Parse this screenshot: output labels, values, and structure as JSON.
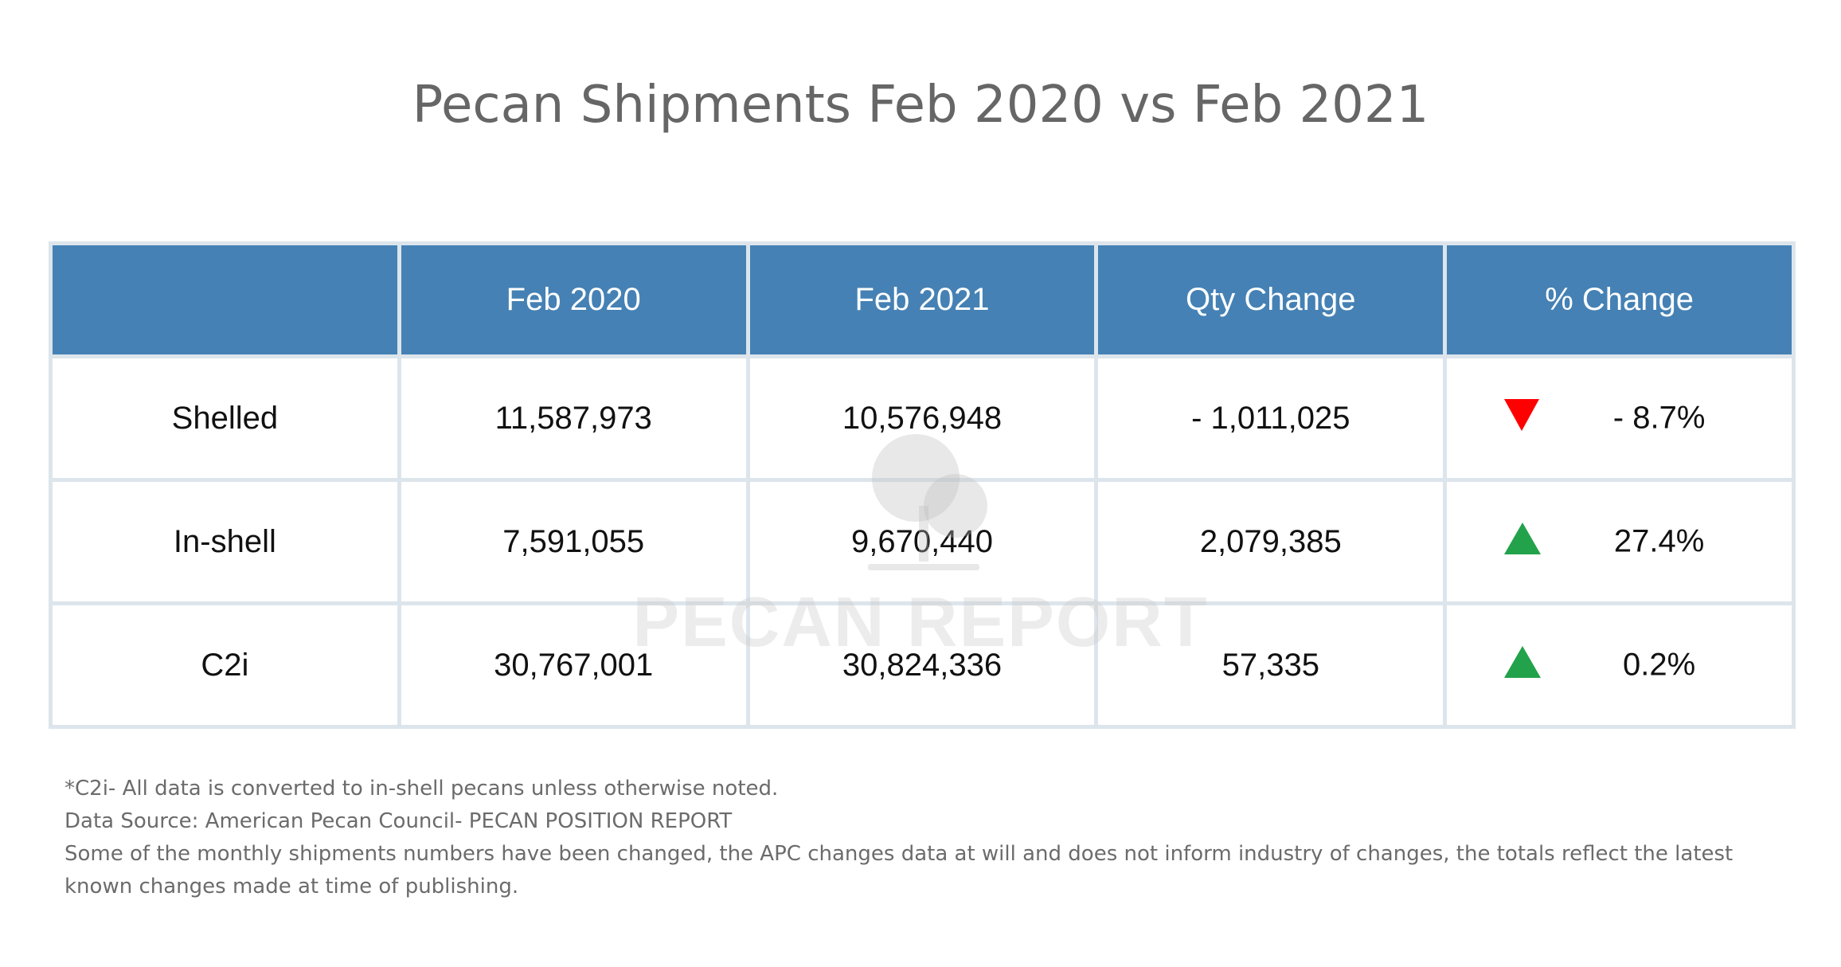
{
  "title": "Pecan Shipments Feb 2020 vs Feb 2021",
  "chart_data": {
    "type": "table",
    "title": "Pecan Shipments Feb 2020 vs Feb 2021",
    "columns": [
      "",
      "Feb 2020",
      "Feb 2021",
      "Qty Change",
      "% Change"
    ],
    "rows": [
      {
        "label": "Shelled",
        "feb_2020": "11,587,973",
        "feb_2021": "10,576,948",
        "qty_change": "- 1,011,025",
        "pct_change": "- 8.7%",
        "direction": "down"
      },
      {
        "label": "In-shell",
        "feb_2020": "7,591,055",
        "feb_2021": "9,670,440",
        "qty_change": "2,079,385",
        "pct_change": "27.4%",
        "direction": "up"
      },
      {
        "label": "C2i",
        "feb_2020": "30,767,001",
        "feb_2021": "30,824,336",
        "qty_change": "57,335",
        "pct_change": "0.2%",
        "direction": "up"
      }
    ]
  },
  "watermark": {
    "text": "PECAN REPORT",
    "icon": "tree-icon"
  },
  "notes": [
    "*C2i- All data is converted to in-shell pecans unless otherwise noted.",
    "Data Source: American Pecan Council- PECAN POSITION REPORT",
    "Some of the monthly shipments numbers have been changed, the APC changes data at will and does not inform industry of changes, the totals reflect the latest known changes made at time of publishing."
  ],
  "colors": {
    "header_bg": "#4581b4",
    "grid_line": "#dde5ec",
    "down_arrow": "#ff0000",
    "up_arrow": "#22a24a",
    "title_text": "#666666",
    "notes_text": "#6b6b6b"
  }
}
